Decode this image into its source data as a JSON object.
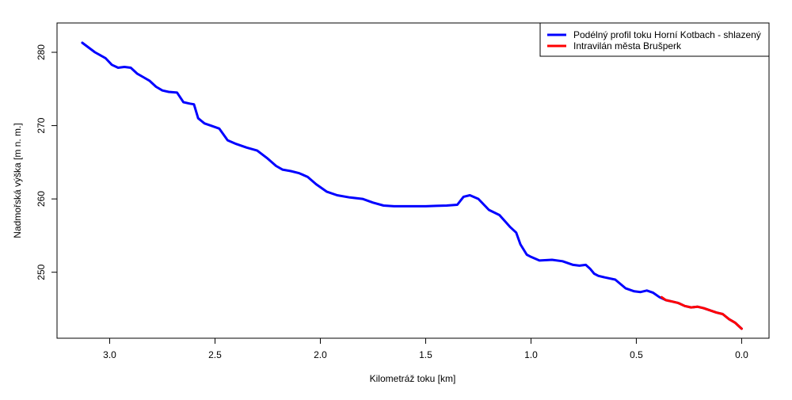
{
  "chart_data": {
    "type": "line",
    "title": "",
    "xlabel": "Kilometráž toku [km]",
    "ylabel": "Nadmořská výška [m n. m.]",
    "x_reversed": true,
    "xlim": [
      3.25,
      -0.13
    ],
    "ylim": [
      241,
      284
    ],
    "xticks": [
      3.0,
      2.5,
      2.0,
      1.5,
      1.0,
      0.5,
      0.0
    ],
    "xtick_labels": [
      "3.0",
      "2.5",
      "2.0",
      "1.5",
      "1.0",
      "0.5",
      "0.0"
    ],
    "yticks": [
      250,
      260,
      270,
      280
    ],
    "ytick_labels": [
      "250",
      "260",
      "270",
      "280"
    ],
    "grid": false,
    "legend_position": "top-right",
    "series": [
      {
        "name": "Podélný profil toku Horní Kotbach - shlazený",
        "color": "#0000ff",
        "x": [
          3.13,
          3.07,
          3.02,
          2.99,
          2.96,
          2.93,
          2.9,
          2.87,
          2.84,
          2.81,
          2.78,
          2.75,
          2.72,
          2.68,
          2.65,
          2.62,
          2.6,
          2.58,
          2.55,
          2.52,
          2.48,
          2.44,
          2.4,
          2.35,
          2.3,
          2.25,
          2.21,
          2.18,
          2.14,
          2.1,
          2.06,
          2.02,
          1.97,
          1.92,
          1.86,
          1.8,
          1.75,
          1.7,
          1.65,
          1.6,
          1.55,
          1.5,
          1.45,
          1.4,
          1.35,
          1.32,
          1.29,
          1.25,
          1.2,
          1.15,
          1.1,
          1.07,
          1.05,
          1.02,
          1.0,
          0.96,
          0.9,
          0.85,
          0.8,
          0.77,
          0.74,
          0.72,
          0.7,
          0.68,
          0.65,
          0.6,
          0.55,
          0.51,
          0.48,
          0.45,
          0.42,
          0.39,
          0.36,
          0.33,
          0.3,
          0.27,
          0.24,
          0.21,
          0.18,
          0.15,
          0.12,
          0.09,
          0.06,
          0.03,
          0.0
        ],
        "y": [
          281.3,
          280.0,
          279.2,
          278.3,
          277.9,
          278.0,
          277.9,
          277.1,
          276.6,
          276.1,
          275.3,
          274.8,
          274.6,
          274.5,
          273.2,
          273.0,
          272.9,
          271.0,
          270.3,
          270.0,
          269.6,
          268.0,
          267.5,
          267.0,
          266.6,
          265.5,
          264.5,
          264.0,
          263.8,
          263.5,
          263.0,
          262.0,
          261.0,
          260.5,
          260.2,
          260.0,
          259.5,
          259.1,
          259.0,
          259.0,
          259.0,
          259.0,
          259.05,
          259.1,
          259.2,
          260.3,
          260.5,
          260.0,
          258.5,
          257.8,
          256.2,
          255.4,
          253.8,
          252.4,
          252.1,
          251.6,
          251.7,
          251.5,
          251.0,
          250.9,
          251.0,
          250.5,
          249.8,
          249.5,
          249.3,
          249.0,
          247.8,
          247.4,
          247.3,
          247.5,
          247.2,
          246.6,
          246.2,
          246.0,
          245.8,
          245.4,
          245.2,
          245.3,
          245.1,
          244.8,
          244.5,
          244.3,
          243.6,
          243.1,
          242.3
        ]
      },
      {
        "name": "Intravilán města Brušperk",
        "color": "#ff0000",
        "x": [
          0.38,
          0.36,
          0.33,
          0.3,
          0.27,
          0.24,
          0.21,
          0.18,
          0.15,
          0.12,
          0.09,
          0.06,
          0.03,
          0.0
        ],
        "y": [
          246.6,
          246.2,
          246.0,
          245.8,
          245.4,
          245.2,
          245.3,
          245.1,
          244.8,
          244.5,
          244.3,
          243.6,
          243.1,
          242.3
        ]
      }
    ]
  }
}
